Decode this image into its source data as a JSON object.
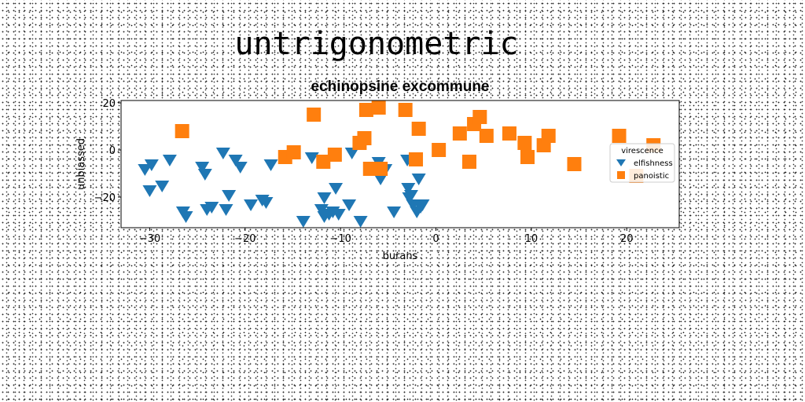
{
  "suptitle": "untrigonometric",
  "chart_data": {
    "type": "scatter",
    "title": "echinopsine excommune",
    "xlabel": "burans",
    "ylabel": "unbiassed",
    "xlim": [
      -33,
      25.5
    ],
    "ylim": [
      -33,
      21
    ],
    "xticks": [
      -30,
      -20,
      -10,
      0,
      10,
      20
    ],
    "yticks": [
      -20,
      0,
      20
    ],
    "grid": false,
    "legend": {
      "title": "virescence",
      "placement": "right"
    },
    "series": [
      {
        "name": "elfishness",
        "color": "#1f77b4",
        "marker": "triangle-down",
        "points": [
          [
            -30.5,
            -8
          ],
          [
            -29.8,
            -6
          ],
          [
            -30,
            -17
          ],
          [
            -28.7,
            -15
          ],
          [
            -27.9,
            -4
          ],
          [
            -26.5,
            -26
          ],
          [
            -26.2,
            -28
          ],
          [
            -24.5,
            -7
          ],
          [
            -24.2,
            -10
          ],
          [
            -24,
            -25
          ],
          [
            -23.5,
            -24
          ],
          [
            -22.3,
            -1
          ],
          [
            -22,
            -25
          ],
          [
            -21.7,
            -19
          ],
          [
            -21,
            -4
          ],
          [
            -20.5,
            -7
          ],
          [
            -19.4,
            -23
          ],
          [
            -18.2,
            -21
          ],
          [
            -17.8,
            -22
          ],
          [
            -17.3,
            -6
          ],
          [
            -13.9,
            -30
          ],
          [
            -13,
            -3
          ],
          [
            -12,
            -25
          ],
          [
            -11.7,
            -20
          ],
          [
            -11.7,
            -28
          ],
          [
            -11.2,
            -27
          ],
          [
            -10.8,
            -26
          ],
          [
            -10.5,
            -16
          ],
          [
            -10.2,
            -27
          ],
          [
            -9.1,
            -23
          ],
          [
            -8.8,
            -1
          ],
          [
            -7.9,
            -30
          ],
          [
            -6,
            -5
          ],
          [
            -5.8,
            -12
          ],
          [
            -5.3,
            -8
          ],
          [
            -4.4,
            -26
          ],
          [
            -3,
            -4
          ],
          [
            -2.9,
            -16
          ],
          [
            -2.8,
            -20
          ],
          [
            -2.6,
            -19
          ],
          [
            -2.4,
            -23
          ],
          [
            -2,
            -26
          ],
          [
            -1.8,
            -12
          ],
          [
            -1.6,
            -24
          ],
          [
            -1.4,
            -23
          ]
        ]
      },
      {
        "name": "panoistic",
        "color": "#ff7f0e",
        "marker": "square",
        "points": [
          [
            -26.6,
            8
          ],
          [
            -15.8,
            -3
          ],
          [
            -14.9,
            -1
          ],
          [
            -12.8,
            15
          ],
          [
            -11.8,
            -5
          ],
          [
            -10.6,
            -2
          ],
          [
            -8,
            3
          ],
          [
            -7.5,
            5
          ],
          [
            -7.3,
            17
          ],
          [
            -6.9,
            -8
          ],
          [
            -6,
            18
          ],
          [
            -5.8,
            -8
          ],
          [
            -3.2,
            17
          ],
          [
            -2.1,
            -4
          ],
          [
            -1.8,
            9
          ],
          [
            0.3,
            0
          ],
          [
            2.5,
            7
          ],
          [
            3.5,
            -5
          ],
          [
            4,
            11
          ],
          [
            4.6,
            14
          ],
          [
            5.3,
            6
          ],
          [
            7.7,
            7
          ],
          [
            9.3,
            3
          ],
          [
            9.6,
            -3
          ],
          [
            11.3,
            2
          ],
          [
            11.8,
            6
          ],
          [
            14.5,
            -6
          ],
          [
            19.2,
            6
          ],
          [
            21,
            -11
          ],
          [
            22.8,
            2
          ]
        ]
      }
    ]
  }
}
